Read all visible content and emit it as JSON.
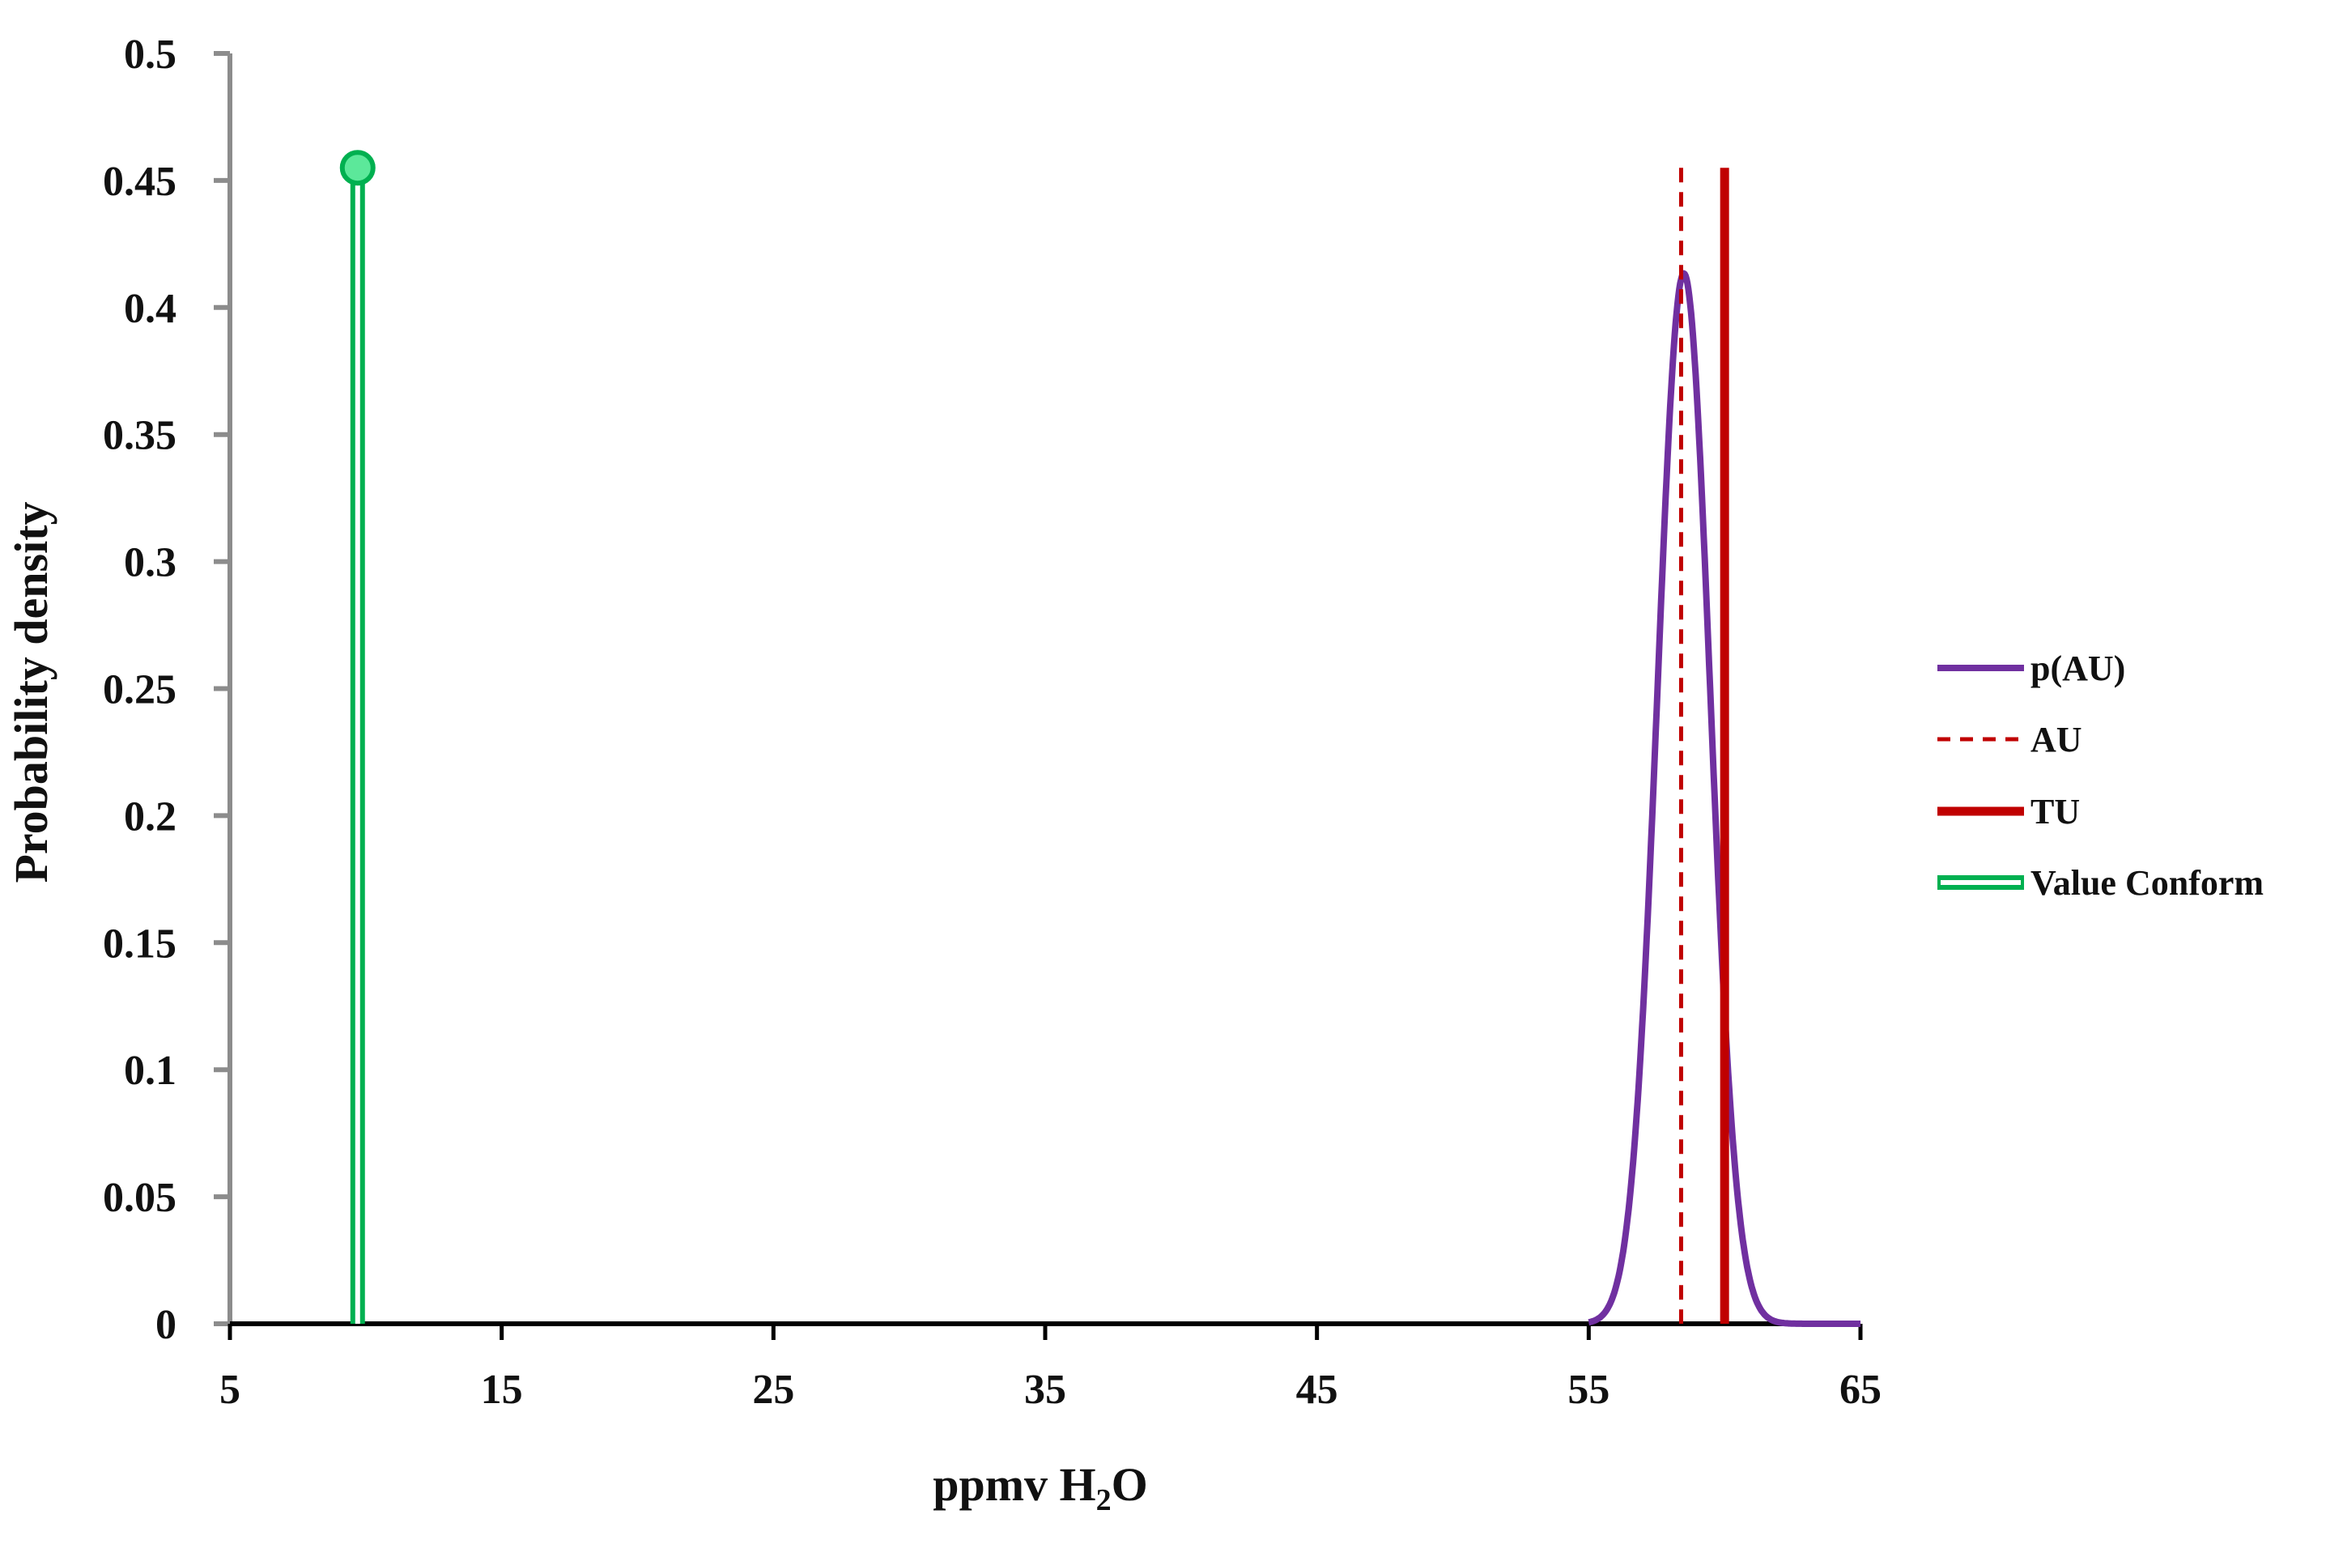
{
  "chart_data": {
    "type": "line",
    "title": "",
    "xlabel": {
      "main": "ppmv H",
      "sub": "2",
      "tail": "O"
    },
    "ylabel": "Probability  density",
    "xlim": [
      5,
      65
    ],
    "ylim": [
      0,
      0.5
    ],
    "x_ticks": [
      "5",
      "15",
      "25",
      "35",
      "45",
      "55",
      "65"
    ],
    "y_ticks": [
      "0",
      "0.05",
      "0.1",
      "0.15",
      "0.2",
      "0.25",
      "0.3",
      "0.35",
      "0.4",
      "0.45",
      "0.5"
    ],
    "grid": false,
    "legend_position": "right",
    "series": [
      {
        "name": "p(AU)",
        "kind": "normal-curve",
        "mean": 58.5,
        "sd": 0.965,
        "x_range": [
          55,
          65
        ],
        "color": "#7030a0"
      },
      {
        "name": "AU",
        "kind": "vline-dashed",
        "x": 58.4,
        "y_top": 0.455,
        "color": "#c00000"
      },
      {
        "name": "TU",
        "kind": "vline-solid",
        "x": 60,
        "y_top": 0.455,
        "color": "#c00000"
      },
      {
        "name": "Value Conform",
        "kind": "lollipop",
        "x": 9.7,
        "y": 0.455,
        "color": "#00b050",
        "marker_fill": "#5ce89a"
      }
    ]
  }
}
